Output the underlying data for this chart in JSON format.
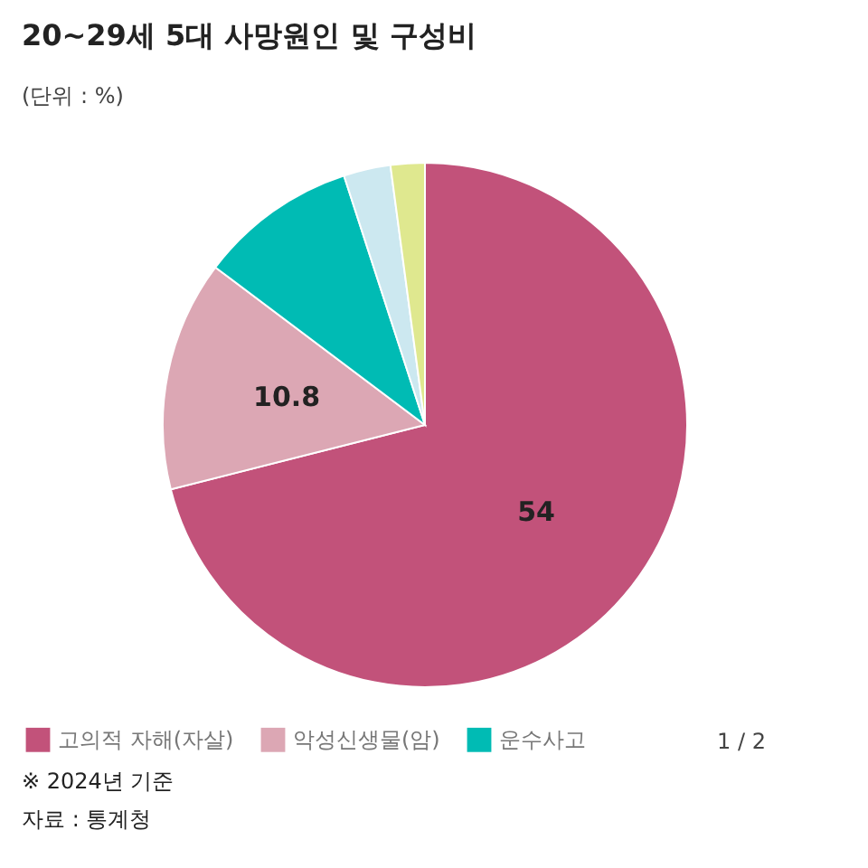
{
  "chart_data": {
    "type": "pie",
    "title": "20~29세 5대 사망원인 및 구성비",
    "subtitle": "(단위 : %)",
    "categories": [
      "고의적 자해(자살)",
      "악성신생물(암)",
      "운수사고",
      null,
      null
    ],
    "values": [
      54,
      10.8,
      7.4,
      2.2,
      1.6
    ],
    "colors": [
      "#c2527a",
      "#dca7b4",
      "#00bbb4",
      "#cce8f0",
      "#dfe88f"
    ],
    "value_labels": [
      "54",
      "10.8",
      null,
      null,
      null
    ],
    "legend": "bottom left",
    "annotations": [
      "1 / 2",
      "※ 2024년 기준",
      "자료 : 통계청"
    ]
  }
}
